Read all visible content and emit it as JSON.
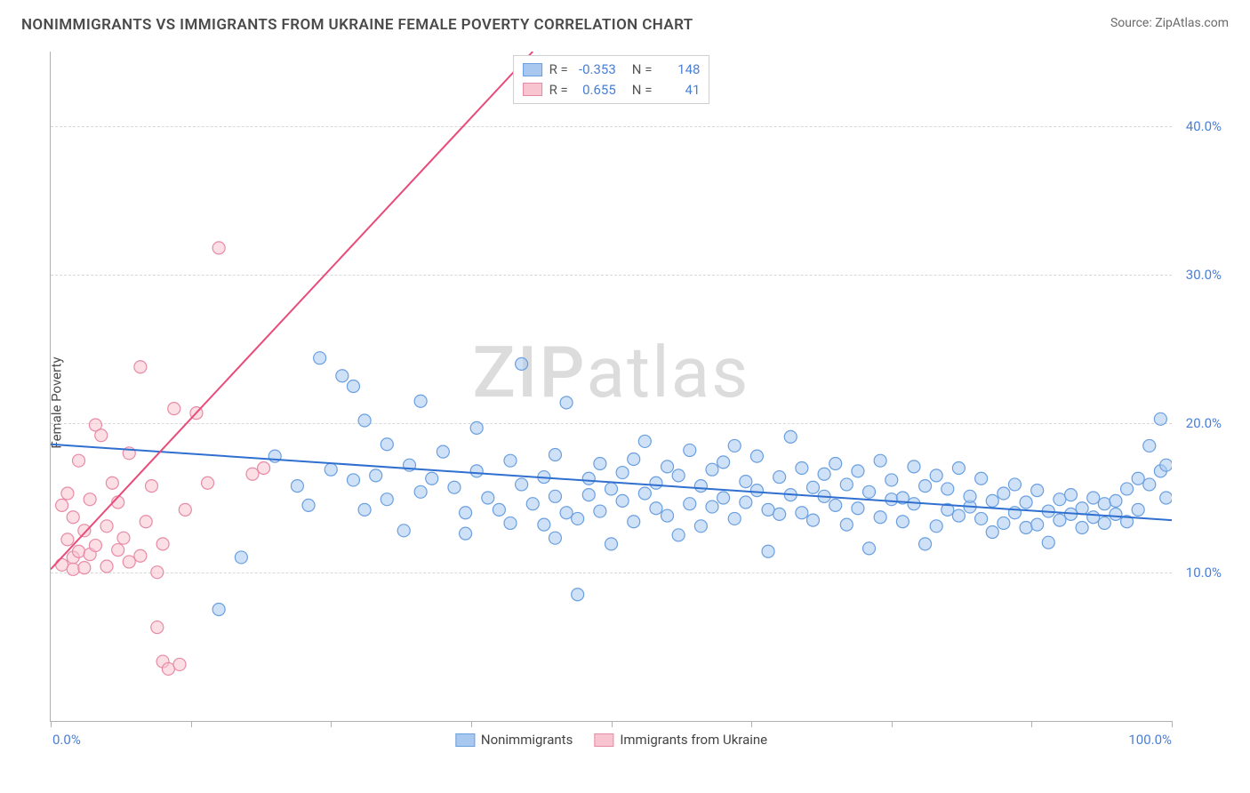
{
  "header": {
    "title": "NONIMMIGRANTS VS IMMIGRANTS FROM UKRAINE FEMALE POVERTY CORRELATION CHART",
    "source": "Source: ZipAtlas.com"
  },
  "chart": {
    "type": "scatter",
    "ylabel": "Female Poverty",
    "watermark": "ZIPatlas",
    "background_color": "#ffffff",
    "grid_color": "#d8d8d8",
    "axis_color": "#b0b0b0",
    "tick_label_color": "#4a7fd6",
    "text_color": "#4a4a4a",
    "xlim": [
      0,
      100
    ],
    "ylim": [
      0,
      45
    ],
    "y_gridlines": [
      10,
      20,
      30,
      40
    ],
    "y_tick_labels": [
      "10.0%",
      "20.0%",
      "30.0%",
      "40.0%"
    ],
    "x_ticks": [
      0,
      12.5,
      25,
      37.5,
      50,
      62.5,
      75,
      87.5,
      100
    ],
    "x_tick_labels": {
      "0": "0.0%",
      "100": "100.0%"
    },
    "marker_radius": 7,
    "marker_opacity": 0.55,
    "line_width": 2,
    "series": [
      {
        "name": "Nonimmigrants",
        "fill": "#a8c8f0",
        "stroke": "#6a9fe0",
        "line_color": "#2f6fd0",
        "R": "-0.353",
        "N": "148",
        "trend": {
          "x1": 0,
          "y1": 18.6,
          "x2": 100,
          "y2": 13.5
        },
        "points": [
          [
            15,
            7.5
          ],
          [
            17,
            11
          ],
          [
            24,
            24.4
          ],
          [
            26,
            23.2
          ],
          [
            27,
            22.5
          ],
          [
            27,
            16.2
          ],
          [
            25,
            16.9
          ],
          [
            23,
            14.5
          ],
          [
            20,
            17.8
          ],
          [
            28,
            20.2
          ],
          [
            29,
            16.5
          ],
          [
            30,
            18.6
          ],
          [
            30,
            14.9
          ],
          [
            31.5,
            12.8
          ],
          [
            32,
            17.2
          ],
          [
            33,
            15.4
          ],
          [
            34,
            16.3
          ],
          [
            35,
            18.1
          ],
          [
            36,
            15.7
          ],
          [
            37,
            14.0
          ],
          [
            37,
            12.6
          ],
          [
            38,
            16.8
          ],
          [
            38,
            19.7
          ],
          [
            39,
            15.0
          ],
          [
            40,
            14.2
          ],
          [
            41,
            17.5
          ],
          [
            41,
            13.3
          ],
          [
            42,
            15.9
          ],
          [
            42,
            24.0
          ],
          [
            43,
            14.6
          ],
          [
            44,
            13.2
          ],
          [
            44,
            16.4
          ],
          [
            45,
            17.9
          ],
          [
            45,
            15.1
          ],
          [
            46,
            21.4
          ],
          [
            46,
            14.0
          ],
          [
            47,
            8.5
          ],
          [
            47,
            13.6
          ],
          [
            48,
            16.3
          ],
          [
            48,
            15.2
          ],
          [
            49,
            14.1
          ],
          [
            49,
            17.3
          ],
          [
            50,
            15.6
          ],
          [
            50,
            11.9
          ],
          [
            51,
            16.7
          ],
          [
            51,
            14.8
          ],
          [
            52,
            13.4
          ],
          [
            52,
            17.6
          ],
          [
            53,
            15.3
          ],
          [
            53,
            18.8
          ],
          [
            54,
            14.3
          ],
          [
            54,
            16.0
          ],
          [
            55,
            17.1
          ],
          [
            55,
            13.8
          ],
          [
            56,
            12.5
          ],
          [
            56,
            16.5
          ],
          [
            57,
            18.2
          ],
          [
            57,
            14.6
          ],
          [
            58,
            15.8
          ],
          [
            58,
            13.1
          ],
          [
            59,
            16.9
          ],
          [
            59,
            14.4
          ],
          [
            60,
            17.4
          ],
          [
            60,
            15.0
          ],
          [
            61,
            13.6
          ],
          [
            61,
            18.5
          ],
          [
            62,
            16.1
          ],
          [
            62,
            14.7
          ],
          [
            63,
            15.5
          ],
          [
            63,
            17.8
          ],
          [
            64,
            14.2
          ],
          [
            64,
            11.4
          ],
          [
            65,
            16.4
          ],
          [
            65,
            13.9
          ],
          [
            66,
            19.1
          ],
          [
            66,
            15.2
          ],
          [
            67,
            14.0
          ],
          [
            67,
            17.0
          ],
          [
            68,
            15.7
          ],
          [
            68,
            13.5
          ],
          [
            69,
            16.6
          ],
          [
            69,
            15.1
          ],
          [
            70,
            14.5
          ],
          [
            70,
            17.3
          ],
          [
            71,
            13.2
          ],
          [
            71,
            15.9
          ],
          [
            72,
            16.8
          ],
          [
            72,
            14.3
          ],
          [
            73,
            11.6
          ],
          [
            73,
            15.4
          ],
          [
            74,
            17.5
          ],
          [
            74,
            13.7
          ],
          [
            75,
            14.9
          ],
          [
            75,
            16.2
          ],
          [
            76,
            15.0
          ],
          [
            76,
            13.4
          ],
          [
            77,
            17.1
          ],
          [
            77,
            14.6
          ],
          [
            78,
            15.8
          ],
          [
            78,
            11.9
          ],
          [
            79,
            13.1
          ],
          [
            79,
            16.5
          ],
          [
            80,
            14.2
          ],
          [
            80,
            15.6
          ],
          [
            81,
            13.8
          ],
          [
            81,
            17.0
          ],
          [
            82,
            14.4
          ],
          [
            82,
            15.1
          ],
          [
            83,
            16.3
          ],
          [
            83,
            13.6
          ],
          [
            84,
            14.8
          ],
          [
            84,
            12.7
          ],
          [
            85,
            15.3
          ],
          [
            85,
            13.3
          ],
          [
            86,
            14.0
          ],
          [
            86,
            15.9
          ],
          [
            87,
            13.0
          ],
          [
            87,
            14.7
          ],
          [
            88,
            15.5
          ],
          [
            88,
            13.2
          ],
          [
            89,
            14.1
          ],
          [
            89,
            12.0
          ],
          [
            90,
            13.5
          ],
          [
            90,
            14.9
          ],
          [
            91,
            15.2
          ],
          [
            91,
            13.9
          ],
          [
            92,
            14.3
          ],
          [
            92,
            13.0
          ],
          [
            93,
            15.0
          ],
          [
            93,
            13.7
          ],
          [
            94,
            14.6
          ],
          [
            94,
            13.3
          ],
          [
            95,
            13.9
          ],
          [
            95,
            14.8
          ],
          [
            96,
            15.6
          ],
          [
            96,
            13.4
          ],
          [
            97,
            16.3
          ],
          [
            97,
            14.2
          ],
          [
            98,
            18.5
          ],
          [
            98,
            15.9
          ],
          [
            99,
            20.3
          ],
          [
            99,
            16.8
          ],
          [
            99.5,
            17.2
          ],
          [
            99.5,
            15.0
          ],
          [
            22,
            15.8
          ],
          [
            33,
            21.5
          ],
          [
            28,
            14.2
          ],
          [
            45,
            12.3
          ]
        ]
      },
      {
        "name": "Immigrants from Ukraine",
        "fill": "#f7c4d0",
        "stroke": "#e78aa5",
        "line_color": "#e94b7a",
        "R": "0.655",
        "N": "41",
        "trend": {
          "x1": 0,
          "y1": 10.2,
          "x2": 43,
          "y2": 45
        },
        "points": [
          [
            1,
            14.5
          ],
          [
            1,
            10.5
          ],
          [
            1.5,
            12.2
          ],
          [
            1.5,
            15.3
          ],
          [
            2,
            11.0
          ],
          [
            2,
            13.7
          ],
          [
            2,
            10.2
          ],
          [
            2.5,
            17.5
          ],
          [
            2.5,
            11.4
          ],
          [
            3,
            12.8
          ],
          [
            3,
            10.3
          ],
          [
            3.5,
            14.9
          ],
          [
            3.5,
            11.2
          ],
          [
            4,
            19.9
          ],
          [
            4,
            11.8
          ],
          [
            4.5,
            19.2
          ],
          [
            5,
            13.1
          ],
          [
            5,
            10.4
          ],
          [
            5.5,
            16.0
          ],
          [
            6,
            11.5
          ],
          [
            6,
            14.7
          ],
          [
            6.5,
            12.3
          ],
          [
            7,
            10.7
          ],
          [
            7,
            18.0
          ],
          [
            8,
            23.8
          ],
          [
            8,
            11.1
          ],
          [
            8.5,
            13.4
          ],
          [
            9,
            15.8
          ],
          [
            9.5,
            10.0
          ],
          [
            9.5,
            6.3
          ],
          [
            10,
            4.0
          ],
          [
            10,
            11.9
          ],
          [
            10.5,
            3.5
          ],
          [
            11,
            21.0
          ],
          [
            11.5,
            3.8
          ],
          [
            12,
            14.2
          ],
          [
            13,
            20.7
          ],
          [
            14,
            16.0
          ],
          [
            15,
            31.8
          ],
          [
            18,
            16.6
          ],
          [
            19,
            17.0
          ]
        ]
      }
    ]
  }
}
